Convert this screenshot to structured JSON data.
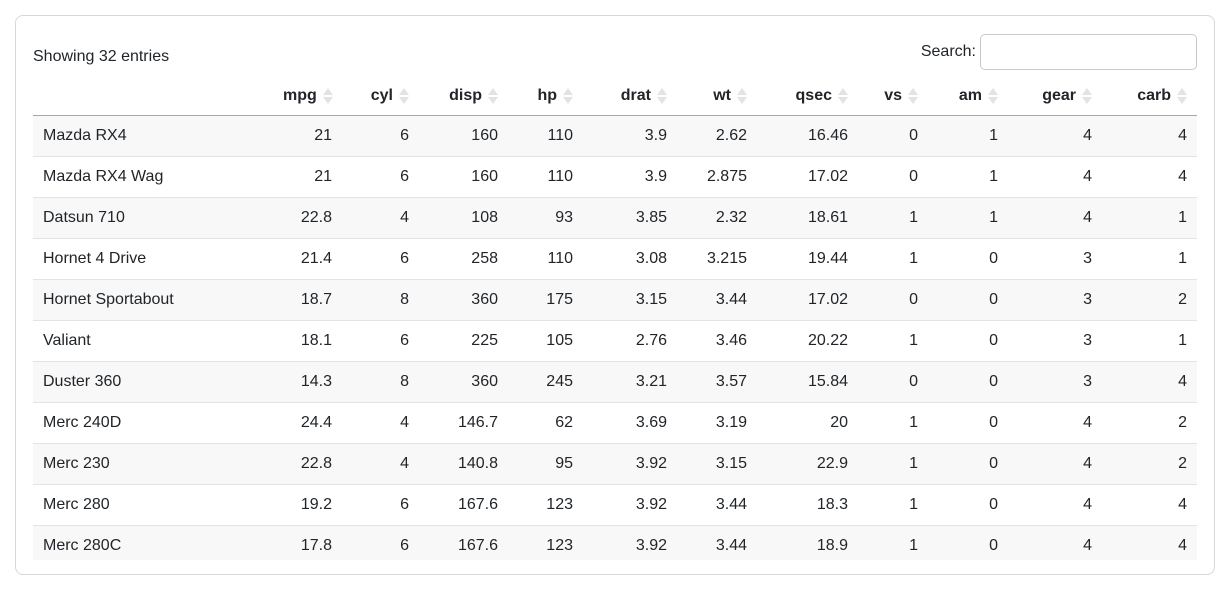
{
  "entries_info": "Showing 32 entries",
  "search": {
    "label": "Search:",
    "value": "",
    "placeholder": ""
  },
  "colors": {
    "stripe": "#f8f8f8",
    "row_border": "#e3e3e3",
    "header_border": "#a8a8a8",
    "sort_icon": "#e3e3e3",
    "card_border": "#d8d8d8",
    "text": "#212529"
  },
  "table": {
    "columns": [
      {
        "key": "name",
        "label": "",
        "sortable": false
      },
      {
        "key": "mpg",
        "label": "mpg",
        "sortable": true
      },
      {
        "key": "cyl",
        "label": "cyl",
        "sortable": true
      },
      {
        "key": "disp",
        "label": "disp",
        "sortable": true
      },
      {
        "key": "hp",
        "label": "hp",
        "sortable": true
      },
      {
        "key": "drat",
        "label": "drat",
        "sortable": true
      },
      {
        "key": "wt",
        "label": "wt",
        "sortable": true
      },
      {
        "key": "qsec",
        "label": "qsec",
        "sortable": true
      },
      {
        "key": "vs",
        "label": "vs",
        "sortable": true
      },
      {
        "key": "am",
        "label": "am",
        "sortable": true
      },
      {
        "key": "gear",
        "label": "gear",
        "sortable": true
      },
      {
        "key": "carb",
        "label": "carb",
        "sortable": true
      }
    ],
    "rows": [
      {
        "name": "Mazda RX4",
        "values": [
          "21",
          "6",
          "160",
          "110",
          "3.9",
          "2.62",
          "16.46",
          "0",
          "1",
          "4",
          "4"
        ]
      },
      {
        "name": "Mazda RX4 Wag",
        "values": [
          "21",
          "6",
          "160",
          "110",
          "3.9",
          "2.875",
          "17.02",
          "0",
          "1",
          "4",
          "4"
        ]
      },
      {
        "name": "Datsun 710",
        "values": [
          "22.8",
          "4",
          "108",
          "93",
          "3.85",
          "2.32",
          "18.61",
          "1",
          "1",
          "4",
          "1"
        ]
      },
      {
        "name": "Hornet 4 Drive",
        "values": [
          "21.4",
          "6",
          "258",
          "110",
          "3.08",
          "3.215",
          "19.44",
          "1",
          "0",
          "3",
          "1"
        ]
      },
      {
        "name": "Hornet Sportabout",
        "values": [
          "18.7",
          "8",
          "360",
          "175",
          "3.15",
          "3.44",
          "17.02",
          "0",
          "0",
          "3",
          "2"
        ]
      },
      {
        "name": "Valiant",
        "values": [
          "18.1",
          "6",
          "225",
          "105",
          "2.76",
          "3.46",
          "20.22",
          "1",
          "0",
          "3",
          "1"
        ]
      },
      {
        "name": "Duster 360",
        "values": [
          "14.3",
          "8",
          "360",
          "245",
          "3.21",
          "3.57",
          "15.84",
          "0",
          "0",
          "3",
          "4"
        ]
      },
      {
        "name": "Merc 240D",
        "values": [
          "24.4",
          "4",
          "146.7",
          "62",
          "3.69",
          "3.19",
          "20",
          "1",
          "0",
          "4",
          "2"
        ]
      },
      {
        "name": "Merc 230",
        "values": [
          "22.8",
          "4",
          "140.8",
          "95",
          "3.92",
          "3.15",
          "22.9",
          "1",
          "0",
          "4",
          "2"
        ]
      },
      {
        "name": "Merc 280",
        "values": [
          "19.2",
          "6",
          "167.6",
          "123",
          "3.92",
          "3.44",
          "18.3",
          "1",
          "0",
          "4",
          "4"
        ]
      },
      {
        "name": "Merc 280C",
        "values": [
          "17.8",
          "6",
          "167.6",
          "123",
          "3.92",
          "3.44",
          "18.9",
          "1",
          "0",
          "4",
          "4"
        ]
      }
    ]
  }
}
